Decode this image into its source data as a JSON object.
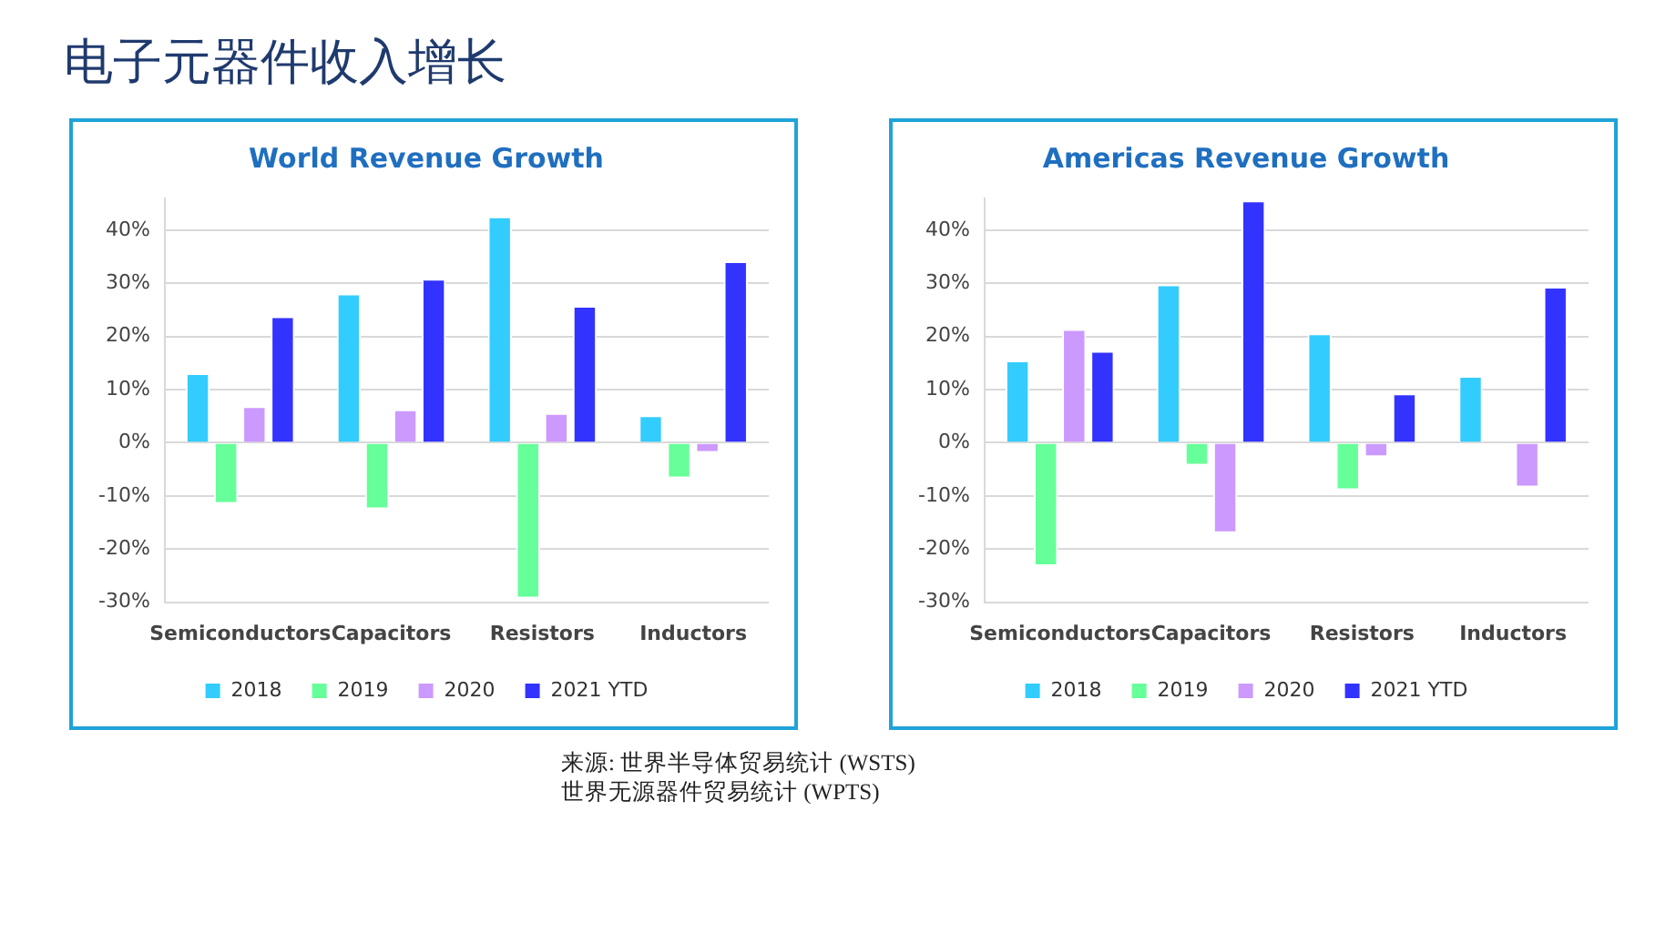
{
  "chart_data": [
    {
      "type": "bar",
      "title": "World Revenue Growth",
      "categories": [
        "Semiconductors",
        "Capacitors",
        "Resistors",
        "Inductors"
      ],
      "series": [
        {
          "name": "2018",
          "color": "#33ccff",
          "values": [
            13.1,
            28.1,
            42.6,
            5.2
          ]
        },
        {
          "name": "2019",
          "color": "#66ff99",
          "values": [
            -11.5,
            -12.5,
            -29.3,
            -6.7
          ]
        },
        {
          "name": "2020",
          "color": "#cc99ff",
          "values": [
            6.9,
            6.3,
            5.6,
            -1.9
          ]
        },
        {
          "name": "2021 YTD",
          "color": "#3333ff",
          "values": [
            23.8,
            30.9,
            25.8,
            34.2
          ]
        }
      ],
      "ylim": [
        -30,
        46
      ],
      "yticks": [
        {
          "value": -30,
          "label": "-30%"
        },
        {
          "value": -20,
          "label": "-20%"
        },
        {
          "value": -10,
          "label": "-10%"
        },
        {
          "value": 0,
          "label": "0%"
        },
        {
          "value": 10,
          "label": "10%"
        },
        {
          "value": 20,
          "label": "20%"
        },
        {
          "value": 30,
          "label": "30%"
        },
        {
          "value": 40,
          "label": "40%"
        }
      ],
      "grid": "y",
      "legend": "bottom",
      "annotations": [
        "电子元器件收入增长"
      ]
    },
    {
      "type": "bar",
      "title": "Americas Revenue Growth",
      "categories": [
        "Semiconductors",
        "Capacitors",
        "Resistors",
        "Inductors"
      ],
      "series": [
        {
          "name": "2018",
          "color": "#33ccff",
          "values": [
            15.5,
            29.8,
            20.6,
            12.6
          ]
        },
        {
          "name": "2019",
          "color": "#66ff99",
          "values": [
            -23.2,
            -4.3,
            -8.9,
            null
          ]
        },
        {
          "name": "2020",
          "color": "#cc99ff",
          "values": [
            21.4,
            -17,
            -2.7,
            -8.4
          ]
        },
        {
          "name": "2021 YTD",
          "color": "#3333ff",
          "values": [
            17.3,
            45.6,
            9.3,
            29.4
          ]
        }
      ],
      "ylim": [
        -30,
        46
      ],
      "yticks": [
        {
          "value": -30,
          "label": "-30%"
        },
        {
          "value": -20,
          "label": "-20%"
        },
        {
          "value": -10,
          "label": "-10%"
        },
        {
          "value": 0,
          "label": "0%"
        },
        {
          "value": 10,
          "label": "10%"
        },
        {
          "value": 20,
          "label": "20%"
        },
        {
          "value": 30,
          "label": "30%"
        },
        {
          "value": 40,
          "label": "40%"
        }
      ],
      "grid": "y",
      "legend": "bottom",
      "annotations": [
        "来源: 世界半导体贸易统计 (WSTS)\n世界无源器件贸易统计 (WPTS)"
      ]
    }
  ]
}
